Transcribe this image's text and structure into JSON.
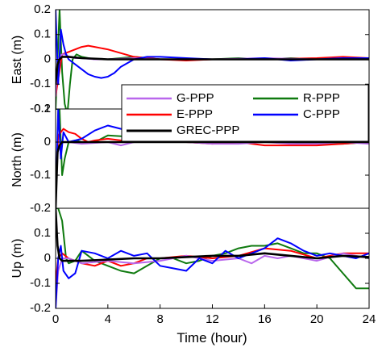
{
  "chart_data": [
    {
      "type": "line",
      "ylabel": "East (m)",
      "ylim": [
        -0.2,
        0.2
      ],
      "yticks": [
        -0.2,
        -0.1,
        0,
        0.1,
        0.2
      ],
      "ytick_labels": [
        "-0.2",
        "-0.1",
        "0",
        "0.1",
        "0.2"
      ],
      "xlim": [
        0,
        24
      ],
      "grid": false,
      "legend": {
        "placement": "right",
        "entries": [
          "G-PPP",
          "R-PPP",
          "E-PPP",
          "C-PPP",
          "GREC-PPP"
        ]
      },
      "series": [
        {
          "name": "G-PPP",
          "color": "#b967ec",
          "x": [
            0,
            0.1,
            0.2,
            0.3,
            0.5,
            0.8,
            1,
            1.5,
            2,
            3,
            4,
            6,
            8,
            12,
            16,
            20,
            22,
            24
          ],
          "y": [
            -0.15,
            -0.05,
            0.0,
            0.01,
            0.02,
            0.02,
            0.01,
            0.005,
            0.005,
            0.0,
            0.0,
            0.005,
            0.0,
            0.0,
            0.005,
            0.0,
            0.005,
            0.005
          ]
        },
        {
          "name": "R-PPP",
          "color": "#0f7a0f",
          "x": [
            0,
            0.3,
            0.5,
            0.7,
            0.9,
            1.1,
            1.3,
            1.6,
            2,
            3,
            4,
            6,
            8,
            10,
            12,
            14,
            16,
            18,
            20,
            22,
            24
          ],
          "y": [
            -0.2,
            0.2,
            -0.05,
            -0.18,
            -0.22,
            -0.1,
            0.0,
            0.02,
            0.01,
            0.0,
            0.0,
            0.01,
            0.0,
            0.0,
            0.0,
            0.005,
            0.0,
            0.005,
            0.0,
            0.005,
            0.005
          ]
        },
        {
          "name": "E-PPP",
          "color": "#ff0000",
          "x": [
            0,
            0.2,
            0.5,
            1,
            1.5,
            2,
            2.5,
            3,
            3.5,
            4,
            5,
            6,
            8,
            10,
            12,
            16,
            20,
            22,
            24
          ],
          "y": [
            -0.15,
            -0.08,
            0.02,
            0.03,
            0.04,
            0.05,
            0.055,
            0.05,
            0.045,
            0.04,
            0.025,
            0.01,
            0.0,
            -0.005,
            0.0,
            0.0,
            0.005,
            0.01,
            0.005
          ]
        },
        {
          "name": "C-PPP",
          "color": "#0000ff",
          "x": [
            0,
            0.2,
            0.4,
            0.6,
            0.8,
            1,
            1.5,
            2,
            2.5,
            3,
            3.5,
            4,
            4.5,
            5,
            6,
            7,
            8,
            10,
            12,
            14,
            16,
            18,
            20,
            22,
            24
          ],
          "y": [
            0.2,
            -0.1,
            0.12,
            0.06,
            0.02,
            0.0,
            -0.02,
            -0.04,
            -0.06,
            -0.07,
            -0.075,
            -0.07,
            -0.055,
            -0.03,
            0.0,
            0.01,
            0.01,
            0.005,
            0.0,
            0.0,
            0.005,
            -0.005,
            0.0,
            0.005,
            0.005
          ]
        },
        {
          "name": "GREC-PPP",
          "color": "#000000",
          "x": [
            0,
            0.15,
            0.3,
            0.5,
            1,
            2,
            4,
            8,
            12,
            16,
            20,
            24
          ],
          "y": [
            -0.1,
            -0.02,
            0.0,
            0.01,
            0.01,
            0.005,
            0.0,
            0.0,
            0.0,
            0.0,
            0.0,
            0.0
          ]
        }
      ]
    },
    {
      "type": "line",
      "ylabel": "North (m)",
      "ylim": [
        -0.2,
        0.1
      ],
      "yticks": [
        -0.2,
        -0.1,
        0,
        0.1
      ],
      "ytick_labels": [
        "-0.2",
        "-0.1",
        "0",
        "0.1"
      ],
      "xlim": [
        0,
        24
      ],
      "grid": false,
      "series": [
        {
          "name": "G-PPP",
          "color": "#b967ec",
          "x": [
            0,
            0.2,
            0.5,
            1,
            2,
            4,
            5,
            6,
            8,
            10,
            12,
            14,
            16,
            18,
            20,
            22,
            24
          ],
          "y": [
            -0.1,
            -0.02,
            0.0,
            0.0,
            -0.005,
            0.0,
            -0.01,
            0.0,
            0.0,
            0.0,
            -0.005,
            -0.005,
            0.0,
            -0.005,
            -0.005,
            0.0,
            -0.005
          ]
        },
        {
          "name": "R-PPP",
          "color": "#0f7a0f",
          "x": [
            0,
            0.3,
            0.5,
            0.7,
            1,
            1.5,
            2,
            3,
            4,
            6,
            8,
            10,
            12,
            14,
            16,
            18,
            20,
            22,
            24
          ],
          "y": [
            0.1,
            0.1,
            -0.1,
            -0.05,
            0.0,
            0.005,
            0.0,
            0.0,
            0.02,
            0.015,
            0.0,
            0.005,
            0.005,
            0.0,
            0.01,
            0.0,
            -0.005,
            -0.005,
            0.0
          ]
        },
        {
          "name": "E-PPP",
          "color": "#ff0000",
          "x": [
            0,
            0.2,
            0.4,
            0.6,
            1,
            1.5,
            2,
            2.5,
            3,
            4,
            6,
            8,
            10,
            12,
            14,
            16,
            18,
            20,
            22,
            24
          ],
          "y": [
            -0.15,
            0.02,
            0.03,
            0.04,
            0.03,
            0.025,
            0.01,
            0.0,
            0.005,
            0.01,
            0.0,
            0.005,
            0.0,
            -0.005,
            0.0,
            -0.01,
            -0.01,
            -0.01,
            -0.005,
            0.0
          ]
        },
        {
          "name": "C-PPP",
          "color": "#0000ff",
          "x": [
            0,
            0.2,
            0.4,
            0.6,
            1,
            1.5,
            2,
            3,
            4,
            5,
            6,
            8,
            10,
            12,
            14,
            16,
            18,
            20,
            22,
            24
          ],
          "y": [
            -0.2,
            0.1,
            -0.05,
            0.03,
            0.0,
            0.005,
            0.01,
            0.035,
            0.05,
            0.04,
            0.03,
            0.02,
            0.015,
            0.02,
            0.015,
            0.015,
            0.005,
            0.01,
            0.02,
            0.03
          ]
        },
        {
          "name": "GREC-PPP",
          "color": "#000000",
          "x": [
            0,
            0.15,
            0.3,
            0.5,
            1,
            2,
            4,
            8,
            12,
            16,
            20,
            24
          ],
          "y": [
            -0.2,
            -0.03,
            -0.01,
            0.0,
            0.0,
            0.0,
            0.0,
            0.0,
            0.0,
            0.0,
            0.0,
            0.0
          ]
        }
      ]
    },
    {
      "type": "line",
      "ylabel": "Up (m)",
      "ylim": [
        -0.2,
        0.2
      ],
      "yticks": [
        -0.2,
        -0.1,
        0,
        0.1
      ],
      "ytick_labels": [
        "-0.2",
        "-0.1",
        "0",
        "0.1"
      ],
      "xlim": [
        0,
        24
      ],
      "xticks": [
        0,
        4,
        8,
        12,
        16,
        20,
        24
      ],
      "xtick_labels": [
        "0",
        "4",
        "8",
        "12",
        "16",
        "20",
        "24"
      ],
      "xlabel": "Time (hour)",
      "grid": false,
      "series": [
        {
          "name": "G-PPP",
          "color": "#b967ec",
          "x": [
            0,
            0.2,
            0.5,
            1,
            2,
            4,
            6,
            8,
            10,
            12,
            14,
            15,
            16,
            17,
            18,
            20,
            22,
            24
          ],
          "y": [
            -0.2,
            -0.05,
            0.0,
            0.0,
            -0.02,
            -0.01,
            -0.02,
            -0.01,
            0.01,
            -0.01,
            0.0,
            -0.02,
            0.01,
            0.0,
            0.01,
            -0.01,
            0.02,
            0.0
          ]
        },
        {
          "name": "R-PPP",
          "color": "#0f7a0f",
          "x": [
            0,
            0.2,
            0.5,
            0.8,
            1,
            1.5,
            2,
            3,
            4,
            5,
            6,
            7,
            8,
            9,
            10,
            11,
            12,
            13,
            14,
            15,
            16,
            17,
            18,
            19,
            20,
            21,
            22,
            23,
            24
          ],
          "y": [
            0.2,
            0.2,
            0.15,
            0.0,
            -0.02,
            -0.01,
            0.03,
            -0.01,
            -0.03,
            -0.05,
            -0.06,
            -0.03,
            0.0,
            0.0,
            -0.02,
            -0.01,
            0.01,
            0.02,
            0.04,
            0.05,
            0.05,
            0.06,
            0.04,
            0.02,
            0.02,
            0.0,
            -0.06,
            -0.12,
            -0.12
          ]
        },
        {
          "name": "E-PPP",
          "color": "#ff0000",
          "x": [
            0,
            0.2,
            0.5,
            1,
            2,
            3,
            4,
            5,
            6,
            7,
            8,
            10,
            12,
            14,
            16,
            18,
            20,
            22,
            24
          ],
          "y": [
            -0.1,
            0.0,
            0.02,
            0.0,
            -0.02,
            -0.03,
            -0.01,
            -0.03,
            -0.02,
            0.0,
            0.0,
            0.01,
            0.0,
            0.01,
            0.04,
            0.03,
            0.0,
            0.02,
            0.02
          ]
        },
        {
          "name": "C-PPP",
          "color": "#0000ff",
          "x": [
            0,
            0.2,
            0.4,
            0.6,
            1,
            1.5,
            2,
            3,
            4,
            5,
            6,
            7,
            8,
            9,
            10,
            11,
            12,
            13,
            14,
            15,
            16,
            17,
            18,
            19,
            20,
            21,
            22,
            23,
            24
          ],
          "y": [
            -0.2,
            0.0,
            0.05,
            -0.05,
            -0.08,
            -0.06,
            0.03,
            0.02,
            0.0,
            0.03,
            0.01,
            0.02,
            -0.03,
            -0.04,
            -0.05,
            0.0,
            -0.02,
            0.03,
            0.0,
            0.02,
            0.04,
            0.08,
            0.06,
            0.03,
            0.01,
            0.02,
            0.01,
            0.0,
            0.02
          ]
        },
        {
          "name": "GREC-PPP",
          "color": "#000000",
          "x": [
            0,
            0.15,
            0.3,
            0.5,
            1,
            2,
            4,
            6,
            8,
            10,
            12,
            14,
            16,
            18,
            20,
            22,
            24
          ],
          "y": [
            0.2,
            0.05,
            0.0,
            -0.01,
            -0.01,
            -0.01,
            -0.005,
            0.0,
            0.0,
            0.005,
            0.01,
            0.01,
            0.02,
            0.01,
            0.0,
            0.01,
            0.005
          ]
        }
      ]
    }
  ]
}
